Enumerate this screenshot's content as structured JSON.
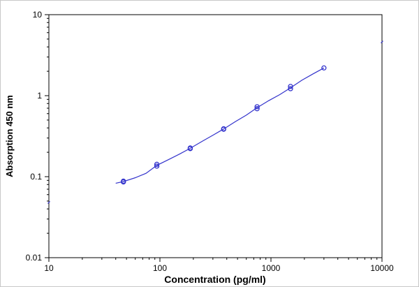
{
  "chart_data": {
    "type": "scatter",
    "title": "",
    "xlabel": "Concentration (pg/ml)",
    "ylabel": "Absorption 450 nm",
    "x_scale": "log",
    "y_scale": "log",
    "xlim": [
      10,
      10000
    ],
    "ylim": [
      0.01,
      10
    ],
    "x_ticks": [
      10,
      100,
      1000,
      10000
    ],
    "x_tick_labels": [
      "10",
      "100",
      "1000",
      "10000"
    ],
    "y_ticks": [
      0.01,
      0.1,
      1,
      10
    ],
    "y_tick_labels": [
      "0.01",
      "0.1",
      "1",
      "10"
    ],
    "grid": false,
    "legend": "none",
    "series": [
      {
        "kind": "points",
        "marker": "open-circle",
        "color": "#3333cc",
        "x": [
          46.9,
          46.9,
          93.8,
          93.8,
          187.5,
          187.5,
          375,
          375,
          750,
          750,
          1500,
          1500,
          3000
        ],
        "y": [
          0.086,
          0.088,
          0.135,
          0.142,
          0.222,
          0.226,
          0.385,
          0.39,
          0.69,
          0.73,
          1.22,
          1.3,
          2.2
        ]
      },
      {
        "kind": "fit-curve",
        "color": "#3333cc",
        "x": [
          40,
          46.9,
          60,
          75,
          93.8,
          120,
          150,
          187.5,
          240,
          300,
          375,
          480,
          600,
          750,
          950,
          1200,
          1500,
          1900,
          2400,
          3000
        ],
        "y": [
          0.083,
          0.087,
          0.097,
          0.11,
          0.138,
          0.163,
          0.19,
          0.224,
          0.273,
          0.325,
          0.388,
          0.48,
          0.575,
          0.71,
          0.865,
          1.03,
          1.25,
          1.55,
          1.86,
          2.2
        ]
      },
      {
        "kind": "edge-marks",
        "color": "#3333cc",
        "x": [
          10,
          10000
        ],
        "y": [
          0.048,
          4.6
        ]
      }
    ]
  }
}
